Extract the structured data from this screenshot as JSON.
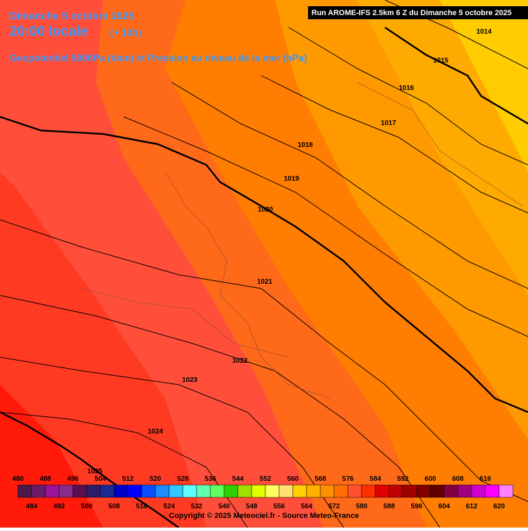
{
  "header": {
    "date": "Dimanche 5 octobre 2025",
    "time": "20:00 locale",
    "lead": "(+ 12h)",
    "subtitle": "Geopotentiel 500hPa (dam) et Pression au niveau de la mer (hPa)",
    "run": "Run AROME-IFS 2.5km 6 Z du Dimanche 5 octobre 2025"
  },
  "isobars": [
    1014,
    1015,
    1016,
    1017,
    1018,
    1019,
    1020,
    1021,
    1022,
    1023,
    1024,
    1025
  ],
  "legend": {
    "values": [
      480,
      484,
      488,
      492,
      496,
      500,
      504,
      508,
      512,
      516,
      520,
      524,
      528,
      532,
      536,
      540,
      544,
      548,
      552,
      556,
      560,
      564,
      568,
      572,
      576,
      580,
      584,
      588,
      592,
      596,
      600,
      604,
      608,
      612,
      616,
      620
    ],
    "colors": [
      "#4b1a4b",
      "#6a1a6a",
      "#9a139a",
      "#8a2a8a",
      "#5a1050",
      "#301a6a",
      "#1a2a90",
      "#0000c8",
      "#0000ff",
      "#0a4fff",
      "#1e8cff",
      "#30c8ff",
      "#60ffff",
      "#60ffb0",
      "#60ff60",
      "#30d000",
      "#a0e000",
      "#e0ff00",
      "#ffff60",
      "#ffe070",
      "#ffd000",
      "#ffb000",
      "#ff9000",
      "#ff7000",
      "#ff5030",
      "#ff3000",
      "#e00000",
      "#c00000",
      "#a00000",
      "#800000",
      "#600000",
      "#800040",
      "#a00080",
      "#d000d0",
      "#ff00ff",
      "#ff80ff"
    ]
  },
  "copyright": "Copyright © 2025 Meteociel.fr - Source Meteo-France"
}
